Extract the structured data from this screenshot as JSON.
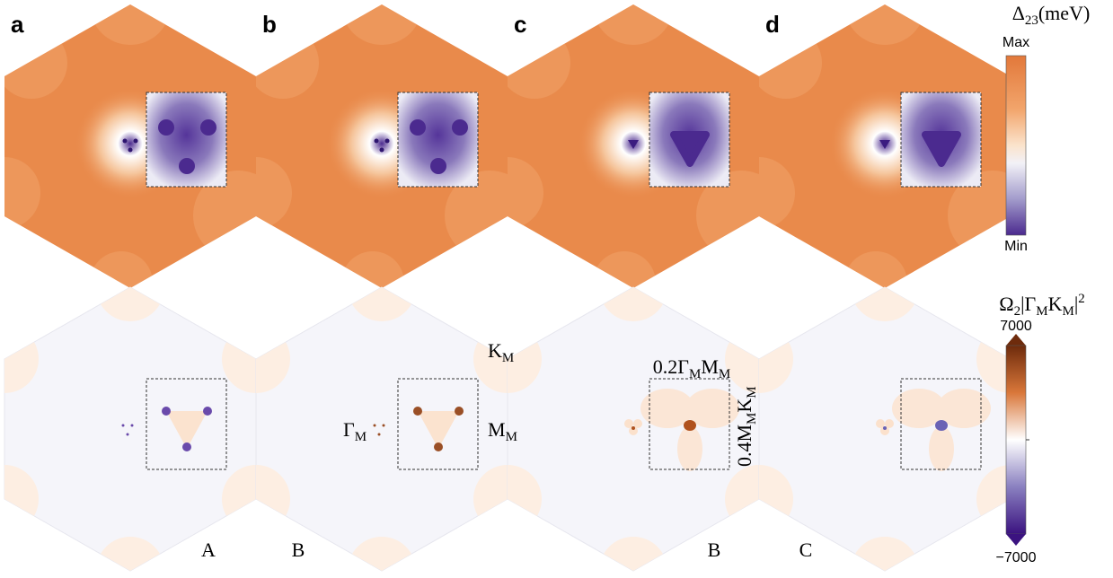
{
  "panels": [
    {
      "label": "a"
    },
    {
      "label": "b"
    },
    {
      "label": "c"
    },
    {
      "label": "d"
    }
  ],
  "colorbar_top": {
    "title": [
      {
        "text": "Δ"
      },
      {
        "text": "23",
        "sub": true
      },
      {
        "text": "(meV)"
      }
    ],
    "max_label": "Max",
    "min_label": "Min"
  },
  "colorbar_bottom": {
    "title": [
      {
        "text": "Ω"
      },
      {
        "text": "2",
        "sub": true
      },
      {
        "text": "|Γ"
      },
      {
        "text": "M",
        "sub": true
      },
      {
        "text": "K"
      },
      {
        "text": "M",
        "sub": true
      },
      {
        "text": "|"
      },
      {
        "text": "2",
        "sup": true
      }
    ],
    "max_label": "7000",
    "min_label": "−7000"
  },
  "annotations": {
    "k_m": [
      {
        "text": "K"
      },
      {
        "text": "M",
        "sub": true
      }
    ],
    "gamma_m": [
      {
        "text": "Γ"
      },
      {
        "text": "M",
        "sub": true
      }
    ],
    "m_m": [
      {
        "text": "M"
      },
      {
        "text": "M",
        "sub": true
      }
    ],
    "width_label": [
      {
        "text": "0.2Γ"
      },
      {
        "text": "M",
        "sub": true
      },
      {
        "text": "M"
      },
      {
        "text": "M",
        "sub": true
      }
    ],
    "height_label": [
      {
        "text": "0.4M"
      },
      {
        "text": "M",
        "sub": true
      },
      {
        "text": "K"
      },
      {
        "text": "M",
        "sub": true
      }
    ]
  },
  "bottom_letters": [
    "A",
    "B",
    "B",
    "C"
  ]
}
